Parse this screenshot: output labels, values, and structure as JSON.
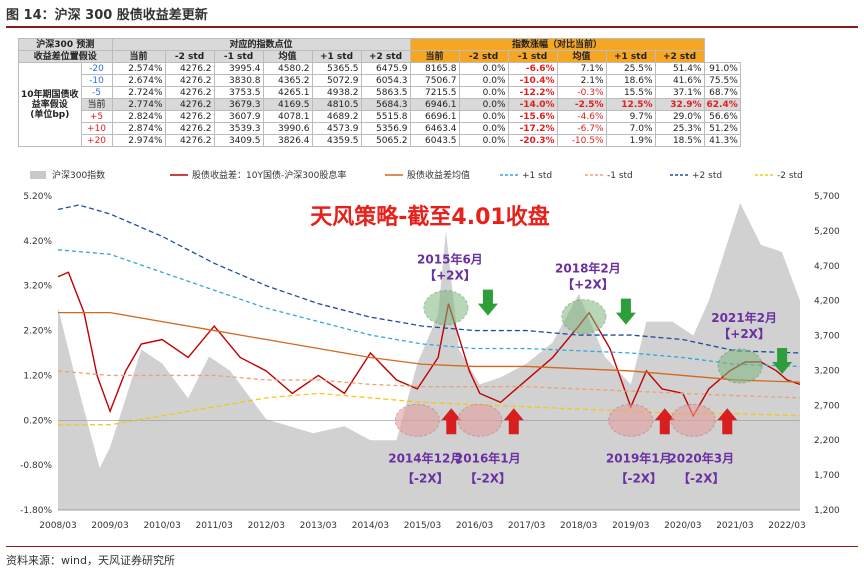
{
  "title": "图 14：沪深 300 股债收益差更新",
  "source": "资料来源：wind，天风证券研究所",
  "table": {
    "hdr_forecast": "沪深300 预测",
    "hdr_assume": "收益差位置假设",
    "hdr_points": "对应的指数点位",
    "hdr_change": "指数涨幅（对比当前）",
    "row_label": [
      "10年期国债收",
      "益率假设",
      "(单位bp)"
    ],
    "cols": [
      "当前",
      "-2 std",
      "-1 std",
      "均值",
      "+1 std",
      "+2 std"
    ],
    "rows": [
      {
        "bp": "-20",
        "yield": "2.574%",
        "pts": [
          "4276.2",
          "3995.4",
          "4580.2",
          "5365.5",
          "6475.9",
          "8165.8"
        ],
        "chg": [
          "0.0%",
          "-6.6%",
          "7.1%",
          "25.5%",
          "51.4%",
          "91.0%"
        ]
      },
      {
        "bp": "-10",
        "yield": "2.674%",
        "pts": [
          "4276.2",
          "3830.8",
          "4365.2",
          "5072.9",
          "6054.3",
          "7506.7"
        ],
        "chg": [
          "0.0%",
          "-10.4%",
          "2.1%",
          "18.6%",
          "41.6%",
          "75.5%"
        ]
      },
      {
        "bp": "-5",
        "yield": "2.724%",
        "pts": [
          "4276.2",
          "3753.5",
          "4265.1",
          "4938.2",
          "5863.5",
          "7215.5"
        ],
        "chg": [
          "0.0%",
          "-12.2%",
          "-0.3%",
          "15.5%",
          "37.1%",
          "68.7%"
        ]
      },
      {
        "bp": "当前",
        "yield": "2.774%",
        "pts": [
          "4276.2",
          "3679.3",
          "4169.5",
          "4810.5",
          "5684.3",
          "6946.1"
        ],
        "chg": [
          "0.0%",
          "-14.0%",
          "-2.5%",
          "12.5%",
          "32.9%",
          "62.4%"
        ]
      },
      {
        "bp": "+5",
        "yield": "2.824%",
        "pts": [
          "4276.2",
          "3607.9",
          "4078.1",
          "4689.2",
          "5515.8",
          "6696.1"
        ],
        "chg": [
          "0.0%",
          "-15.6%",
          "-4.6%",
          "9.7%",
          "29.0%",
          "56.6%"
        ]
      },
      {
        "bp": "+10",
        "yield": "2.874%",
        "pts": [
          "4276.2",
          "3539.3",
          "3990.6",
          "4573.9",
          "5356.9",
          "6463.4"
        ],
        "chg": [
          "0.0%",
          "-17.2%",
          "-6.7%",
          "7.0%",
          "25.3%",
          "51.2%"
        ]
      },
      {
        "bp": "+20",
        "yield": "2.974%",
        "pts": [
          "4276.2",
          "3409.5",
          "3826.4",
          "4359.5",
          "5065.2",
          "6043.5"
        ],
        "chg": [
          "0.0%",
          "-20.3%",
          "-10.5%",
          "1.9%",
          "18.5%",
          "41.3%"
        ]
      }
    ]
  },
  "chart_data": {
    "type": "line",
    "legend": [
      "沪深300指数",
      "股债收益差：10Y国债-沪深300股息率",
      "股债收益差均值",
      "+1 std",
      "-1 std",
      "+2 std",
      "-2 std"
    ],
    "legend_placement": "top",
    "overlay_text": "天风策略-截至4.01收盘",
    "x_ticks": [
      "2008/03",
      "2009/03",
      "2010/03",
      "2011/03",
      "2012/03",
      "2013/03",
      "2014/03",
      "2015/03",
      "2016/03",
      "2017/03",
      "2018/03",
      "2019/03",
      "2020/03",
      "2021/03",
      "2022/03"
    ],
    "y_left_ticks": [
      "5.20%",
      "4.20%",
      "3.20%",
      "2.20%",
      "1.20%",
      "0.20%",
      "-0.80%",
      "-1.80%"
    ],
    "y_left_range": [
      -1.8,
      5.2
    ],
    "y_right_ticks": [
      "5,700",
      "5,200",
      "4,700",
      "4,200",
      "3,700",
      "3,200",
      "2,700",
      "2,200",
      "1,700",
      "1,200"
    ],
    "y_right_range": [
      1200,
      5700
    ],
    "series": [
      {
        "name": "股债收益差：10Y国债-沪深300股息率",
        "color": "#c00000",
        "x": [
          2008.0,
          2008.2,
          2008.5,
          2008.75,
          2009.0,
          2009.3,
          2009.6,
          2010.0,
          2010.5,
          2011.0,
          2011.5,
          2012.0,
          2012.5,
          2013.0,
          2013.5,
          2014.0,
          2014.5,
          2014.9,
          2015.3,
          2015.5,
          2015.9,
          2016.1,
          2016.5,
          2017.0,
          2017.5,
          2018.0,
          2018.2,
          2018.6,
          2019.0,
          2019.3,
          2019.6,
          2020.0,
          2020.2,
          2020.5,
          2020.9,
          2021.2,
          2021.5,
          2021.8,
          2022.0,
          2022.25
        ],
        "y": [
          3.4,
          3.5,
          2.6,
          1.2,
          0.4,
          1.3,
          1.9,
          2.0,
          1.6,
          2.3,
          1.6,
          1.3,
          0.8,
          1.2,
          0.8,
          1.7,
          1.1,
          0.9,
          1.6,
          2.8,
          1.3,
          0.8,
          0.6,
          1.1,
          1.6,
          2.3,
          2.6,
          1.8,
          0.5,
          1.3,
          0.9,
          0.8,
          0.3,
          0.9,
          1.3,
          1.5,
          1.5,
          1.3,
          1.1,
          1.0
        ]
      },
      {
        "name": "股债收益差均值",
        "color": "#d2691e",
        "x": [
          2008.0,
          2009.0,
          2010.0,
          2011.0,
          2012.0,
          2013.0,
          2014.0,
          2015.0,
          2016.0,
          2017.0,
          2018.0,
          2019.0,
          2020.0,
          2021.0,
          2022.25
        ],
        "y": [
          2.6,
          2.6,
          2.4,
          2.2,
          2.0,
          1.8,
          1.6,
          1.45,
          1.4,
          1.4,
          1.35,
          1.3,
          1.2,
          1.1,
          1.05
        ]
      },
      {
        "name": "+1 std",
        "color": "#2ea7e0",
        "x": [
          2008.0,
          2009.0,
          2010.0,
          2011.0,
          2012.0,
          2013.0,
          2014.0,
          2015.0,
          2016.0,
          2017.0,
          2018.0,
          2019.0,
          2020.0,
          2021.0,
          2022.25
        ],
        "y": [
          4.0,
          3.9,
          3.5,
          3.1,
          2.7,
          2.4,
          2.1,
          1.9,
          1.8,
          1.8,
          1.75,
          1.7,
          1.6,
          1.45,
          1.4
        ]
      },
      {
        "name": "-1 std",
        "color": "#f0a070",
        "x": [
          2008.0,
          2009.0,
          2010.0,
          2011.0,
          2012.0,
          2013.0,
          2014.0,
          2015.0,
          2016.0,
          2017.0,
          2018.0,
          2019.0,
          2020.0,
          2021.0,
          2022.25
        ],
        "y": [
          1.3,
          1.2,
          1.2,
          1.2,
          1.1,
          1.1,
          1.0,
          0.95,
          0.95,
          0.95,
          0.9,
          0.85,
          0.8,
          0.75,
          0.7
        ]
      },
      {
        "name": "+2 std",
        "color": "#1f4e9c",
        "x": [
          2008.0,
          2008.4,
          2009.0,
          2010.0,
          2011.0,
          2012.0,
          2013.0,
          2014.0,
          2015.0,
          2016.0,
          2017.0,
          2018.0,
          2019.0,
          2020.0,
          2021.0,
          2022.25
        ],
        "y": [
          4.9,
          5.0,
          4.8,
          4.3,
          3.7,
          3.2,
          2.8,
          2.5,
          2.3,
          2.2,
          2.2,
          2.1,
          2.1,
          2.0,
          1.75,
          1.7
        ]
      },
      {
        "name": "-2 std",
        "color": "#f5c518",
        "x": [
          2008.0,
          2009.0,
          2010.0,
          2011.0,
          2012.0,
          2013.0,
          2014.0,
          2015.0,
          2016.0,
          2017.0,
          2018.0,
          2019.0,
          2020.0,
          2021.0,
          2022.25
        ],
        "y": [
          0.1,
          0.1,
          0.3,
          0.5,
          0.7,
          0.8,
          0.7,
          0.6,
          0.55,
          0.5,
          0.45,
          0.4,
          0.35,
          0.35,
          0.3
        ]
      }
    ],
    "area": {
      "name": "沪深300指数",
      "color": "#c9c9c9",
      "x": [
        2008.0,
        2008.3,
        2008.8,
        2009.0,
        2009.6,
        2010.0,
        2010.5,
        2010.9,
        2011.3,
        2012.0,
        2012.9,
        2013.5,
        2014.0,
        2014.5,
        2014.9,
        2015.3,
        2015.45,
        2015.7,
        2016.1,
        2016.5,
        2017.0,
        2017.5,
        2018.0,
        2018.5,
        2019.0,
        2019.3,
        2019.8,
        2020.2,
        2020.5,
        2021.1,
        2021.5,
        2021.9,
        2022.25
      ],
      "y": [
        4100,
        3200,
        1800,
        2100,
        3500,
        3300,
        2800,
        3400,
        3200,
        2500,
        2300,
        2400,
        2200,
        2200,
        3300,
        4000,
        5200,
        3500,
        3000,
        3100,
        3300,
        3600,
        4300,
        3400,
        3000,
        3900,
        3900,
        3700,
        4200,
        5600,
        5000,
        4900,
        4200
      ]
    },
    "annotations": [
      {
        "label": "2014年12月",
        "tag": "【-2X】",
        "x": 2014.9,
        "type": "low"
      },
      {
        "label": "2015年6月",
        "tag": "【+2X】",
        "x": 2015.45,
        "type": "high"
      },
      {
        "label": "2016年1月",
        "tag": "【-2X】",
        "x": 2016.1,
        "type": "low"
      },
      {
        "label": "2018年2月",
        "tag": "【+2X】",
        "x": 2018.1,
        "type": "high"
      },
      {
        "label": "2019年1月",
        "tag": "【-2X】",
        "x": 2019.0,
        "type": "low"
      },
      {
        "label": "2020年3月",
        "tag": "【-2X】",
        "x": 2020.2,
        "type": "low"
      },
      {
        "label": "2021年2月",
        "tag": "【+2X】",
        "x": 2021.1,
        "type": "high"
      }
    ]
  }
}
